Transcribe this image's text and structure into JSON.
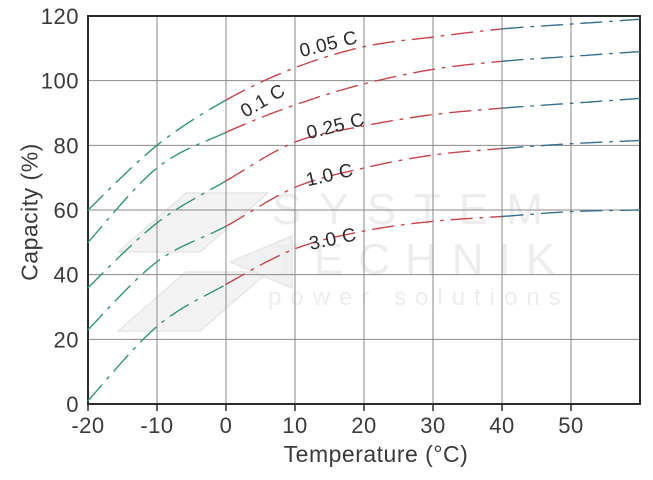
{
  "watermark": {
    "line1": "SYSTEM",
    "line2": "TECHNIK",
    "line3": "power solutions"
  },
  "chart_data": {
    "type": "line",
    "title": "",
    "xlabel": "Temperature (°C)",
    "ylabel": "Capacity (%)",
    "xlim": [
      -20,
      60
    ],
    "ylim": [
      0,
      120
    ],
    "x_ticks": [
      -20,
      -10,
      0,
      10,
      20,
      30,
      40,
      50
    ],
    "y_ticks": [
      0,
      20,
      40,
      60,
      80,
      100,
      120
    ],
    "grid": true,
    "line_style": "dash-dot",
    "x": [
      -20,
      -10,
      0,
      10,
      20,
      30,
      40,
      50,
      60
    ],
    "series": [
      {
        "name": "0.05 C",
        "values": [
          60,
          80,
          94,
          104,
          110.5,
          113.5,
          116,
          117.5,
          119
        ]
      },
      {
        "name": "0.1 C",
        "values": [
          50,
          73,
          84,
          92.5,
          99,
          103.5,
          106,
          107.5,
          109
        ]
      },
      {
        "name": "0.25 C",
        "values": [
          36,
          56,
          69,
          81,
          86,
          89.5,
          91.5,
          93,
          94.5
        ]
      },
      {
        "name": "1.0 C",
        "values": [
          23,
          44,
          55,
          67,
          73,
          77,
          79,
          80.5,
          81.5
        ]
      },
      {
        "name": "3.0 C",
        "values": [
          1,
          24,
          37,
          48,
          53.5,
          56.5,
          58,
          59.5,
          60
        ]
      }
    ],
    "segment_breaks": [
      0,
      40
    ],
    "colors": {
      "low_temp": "#2f967a",
      "mid_temp": "#c5454b",
      "high_temp": "#35708f",
      "grid": "#8a8a8a",
      "axis": "#2b2b2b",
      "text": "#3a3a3a"
    }
  }
}
